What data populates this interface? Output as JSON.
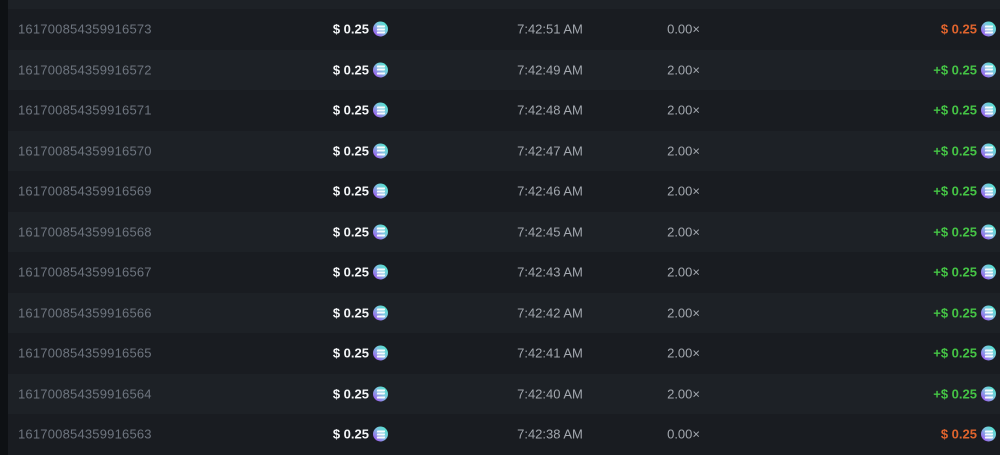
{
  "colors": {
    "page_bg": "#0e1114",
    "row_dark": "#191c21",
    "row_light": "#1d2126",
    "id_text": "#6e757f",
    "muted_text": "#a2a7ae",
    "bet_text": "#f4f6f8",
    "win": "#45c445",
    "loss": "#e0642d"
  },
  "icons": {
    "currency": "solana-coin-icon"
  },
  "table": {
    "columns": [
      "bet_id",
      "bet_amount",
      "time",
      "multiplier",
      "payout"
    ],
    "rows": [
      {
        "id": "161700854359916573",
        "bet": "$ 0.25",
        "time": "7:42:51 AM",
        "multiplier": "0.00×",
        "payout": "$ 0.25",
        "result": "loss"
      },
      {
        "id": "161700854359916572",
        "bet": "$ 0.25",
        "time": "7:42:49 AM",
        "multiplier": "2.00×",
        "payout": "+$ 0.25",
        "result": "win"
      },
      {
        "id": "161700854359916571",
        "bet": "$ 0.25",
        "time": "7:42:48 AM",
        "multiplier": "2.00×",
        "payout": "+$ 0.25",
        "result": "win"
      },
      {
        "id": "161700854359916570",
        "bet": "$ 0.25",
        "time": "7:42:47 AM",
        "multiplier": "2.00×",
        "payout": "+$ 0.25",
        "result": "win"
      },
      {
        "id": "161700854359916569",
        "bet": "$ 0.25",
        "time": "7:42:46 AM",
        "multiplier": "2.00×",
        "payout": "+$ 0.25",
        "result": "win"
      },
      {
        "id": "161700854359916568",
        "bet": "$ 0.25",
        "time": "7:42:45 AM",
        "multiplier": "2.00×",
        "payout": "+$ 0.25",
        "result": "win"
      },
      {
        "id": "161700854359916567",
        "bet": "$ 0.25",
        "time": "7:42:43 AM",
        "multiplier": "2.00×",
        "payout": "+$ 0.25",
        "result": "win"
      },
      {
        "id": "161700854359916566",
        "bet": "$ 0.25",
        "time": "7:42:42 AM",
        "multiplier": "2.00×",
        "payout": "+$ 0.25",
        "result": "win"
      },
      {
        "id": "161700854359916565",
        "bet": "$ 0.25",
        "time": "7:42:41 AM",
        "multiplier": "2.00×",
        "payout": "+$ 0.25",
        "result": "win"
      },
      {
        "id": "161700854359916564",
        "bet": "$ 0.25",
        "time": "7:42:40 AM",
        "multiplier": "2.00×",
        "payout": "+$ 0.25",
        "result": "win"
      },
      {
        "id": "161700854359916563",
        "bet": "$ 0.25",
        "time": "7:42:38 AM",
        "multiplier": "0.00×",
        "payout": "$ 0.25",
        "result": "loss"
      }
    ]
  }
}
